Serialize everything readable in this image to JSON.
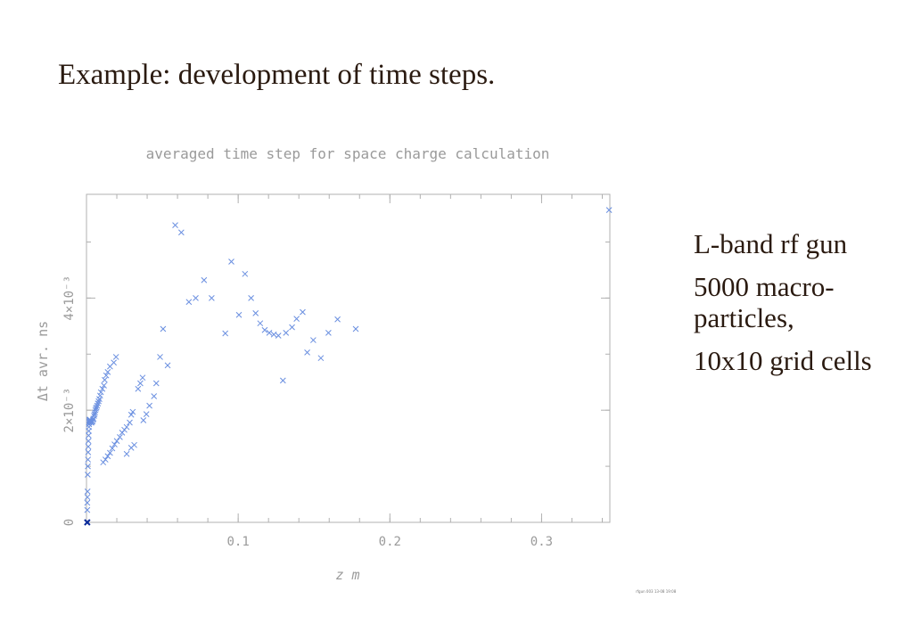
{
  "slide": {
    "title": "Example: development of time steps.",
    "bullets": [
      "L-band rf gun",
      "5000 macro-particles,",
      "10x10 grid cells"
    ]
  },
  "colors": {
    "marker": "#6a8fe0",
    "first_marker": "#0a2a9a",
    "axis": "#b0b0b0",
    "text": "#2a1a10"
  },
  "chart_data": {
    "type": "scatter",
    "title": "averaged time step for space charge calculation",
    "xlabel": "z  m",
    "ylabel": "Δt avr. ns",
    "xlim": [
      0,
      0.345
    ],
    "ylim": [
      0,
      0.00585
    ],
    "x_ticks": [
      {
        "value": 0.1,
        "label": "0.1"
      },
      {
        "value": 0.2,
        "label": "0.2"
      },
      {
        "value": 0.3,
        "label": "0.3"
      }
    ],
    "y_ticks": [
      {
        "value": 0,
        "label": "0"
      },
      {
        "value": 0.002,
        "label": "2×10⁻³"
      },
      {
        "value": 0.004,
        "label": "4×10⁻³"
      }
    ],
    "x_minor_step": 0.02,
    "y_minor_step": 0.001,
    "grid": false,
    "footer_stamp": "rfgun 003  13-08  19:08",
    "series": [
      {
        "marker": "x",
        "points": [
          [
            0.0005,
            0.0
          ],
          [
            0.0005,
            0.00022
          ],
          [
            0.0005,
            0.00035
          ],
          [
            0.0006,
            0.00045
          ],
          [
            0.0007,
            0.00055
          ],
          [
            0.0008,
            0.00085
          ],
          [
            0.0009,
            0.001
          ],
          [
            0.001,
            0.00112
          ],
          [
            0.0011,
            0.00125
          ],
          [
            0.0012,
            0.00135
          ],
          [
            0.0013,
            0.00145
          ],
          [
            0.0014,
            0.00155
          ],
          [
            0.0015,
            0.00163
          ],
          [
            0.0016,
            0.0017
          ],
          [
            0.0017,
            0.00175
          ],
          [
            0.0018,
            0.00178
          ],
          [
            0.0019,
            0.0018
          ],
          [
            0.002,
            0.00182
          ],
          [
            0.0021,
            0.00183
          ],
          [
            0.0022,
            0.00183
          ],
          [
            0.0023,
            0.00183
          ],
          [
            0.0025,
            0.00182
          ],
          [
            0.0027,
            0.0018
          ],
          [
            0.003,
            0.00178
          ],
          [
            0.0033,
            0.00178
          ],
          [
            0.0037,
            0.0018
          ],
          [
            0.004,
            0.0018
          ],
          [
            0.0043,
            0.00183
          ],
          [
            0.0046,
            0.00185
          ],
          [
            0.005,
            0.0019
          ],
          [
            0.0053,
            0.00193
          ],
          [
            0.0056,
            0.00196
          ],
          [
            0.0059,
            0.002
          ],
          [
            0.0062,
            0.00203
          ],
          [
            0.0066,
            0.00205
          ],
          [
            0.007,
            0.00208
          ],
          [
            0.0075,
            0.00212
          ],
          [
            0.008,
            0.00216
          ],
          [
            0.0085,
            0.0022
          ],
          [
            0.009,
            0.00226
          ],
          [
            0.0095,
            0.00232
          ],
          [
            0.0105,
            0.00238
          ],
          [
            0.0115,
            0.00244
          ],
          [
            0.012,
            0.00254
          ],
          [
            0.013,
            0.00262
          ],
          [
            0.014,
            0.00268
          ],
          [
            0.0155,
            0.00278
          ],
          [
            0.018,
            0.00285
          ],
          [
            0.0195,
            0.00295
          ],
          [
            0.011,
            0.00107
          ],
          [
            0.0125,
            0.00112
          ],
          [
            0.014,
            0.00118
          ],
          [
            0.0155,
            0.00124
          ],
          [
            0.017,
            0.00132
          ],
          [
            0.0185,
            0.00139
          ],
          [
            0.02,
            0.00145
          ],
          [
            0.022,
            0.00152
          ],
          [
            0.0235,
            0.0016
          ],
          [
            0.025,
            0.00165
          ],
          [
            0.0265,
            0.0017
          ],
          [
            0.0285,
            0.00178
          ],
          [
            0.0295,
            0.00192
          ],
          [
            0.0305,
            0.00197
          ],
          [
            0.0265,
            0.00122
          ],
          [
            0.0295,
            0.00133
          ],
          [
            0.0315,
            0.00138
          ],
          [
            0.034,
            0.00238
          ],
          [
            0.0355,
            0.00248
          ],
          [
            0.037,
            0.00258
          ],
          [
            0.0375,
            0.00182
          ],
          [
            0.0395,
            0.00193
          ],
          [
            0.0415,
            0.00208
          ],
          [
            0.0445,
            0.00225
          ],
          [
            0.046,
            0.00248
          ],
          [
            0.0485,
            0.00295
          ],
          [
            0.0505,
            0.00345
          ],
          [
            0.0535,
            0.0028
          ],
          [
            0.0585,
            0.0053
          ],
          [
            0.0625,
            0.00517
          ],
          [
            0.0675,
            0.00393
          ],
          [
            0.072,
            0.004
          ],
          [
            0.0775,
            0.00432
          ],
          [
            0.0825,
            0.004
          ],
          [
            0.0915,
            0.00337
          ],
          [
            0.0955,
            0.00465
          ],
          [
            0.1005,
            0.0037
          ],
          [
            0.1045,
            0.00443
          ],
          [
            0.1085,
            0.004
          ],
          [
            0.1115,
            0.00373
          ],
          [
            0.1145,
            0.00355
          ],
          [
            0.1175,
            0.00343
          ],
          [
            0.1205,
            0.00338
          ],
          [
            0.1235,
            0.00335
          ],
          [
            0.1265,
            0.00333
          ],
          [
            0.1295,
            0.00253
          ],
          [
            0.1315,
            0.00338
          ],
          [
            0.1355,
            0.00348
          ],
          [
            0.1385,
            0.00363
          ],
          [
            0.1425,
            0.00375
          ],
          [
            0.1455,
            0.00303
          ],
          [
            0.1495,
            0.00325
          ],
          [
            0.1545,
            0.00293
          ],
          [
            0.1595,
            0.00338
          ],
          [
            0.1655,
            0.00362
          ],
          [
            0.1775,
            0.00345
          ],
          [
            0.3445,
            0.00557
          ]
        ]
      }
    ]
  }
}
